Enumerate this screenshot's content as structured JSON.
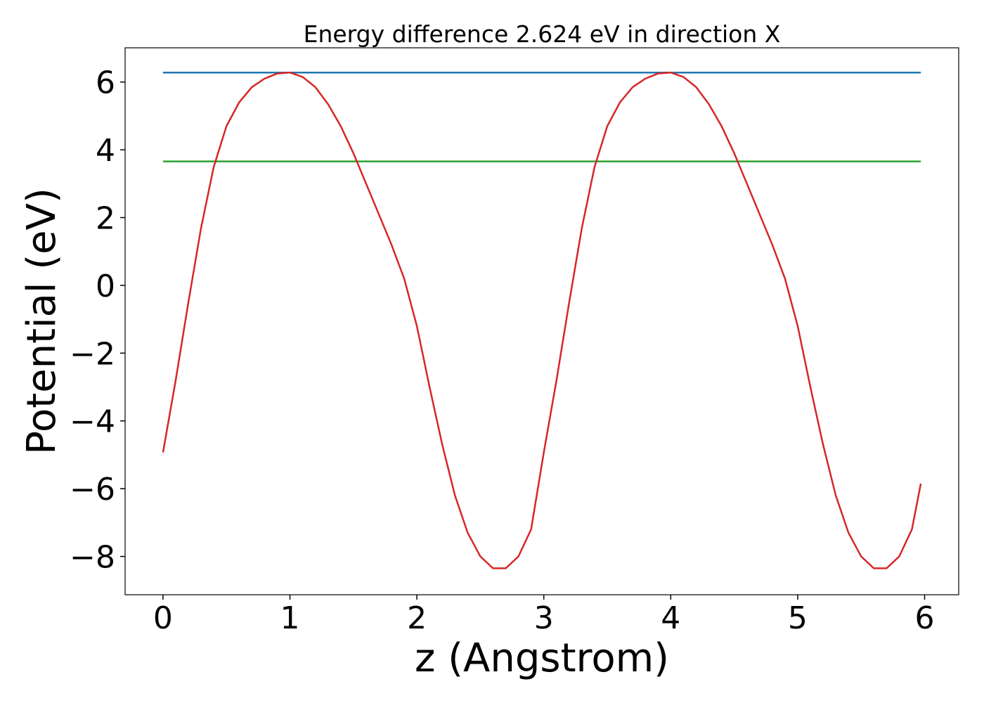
{
  "chart_data": {
    "type": "line",
    "title": "Energy difference 2.624 eV in direction X",
    "x_label": "z (Angstrom)",
    "y_label": "Potential (eV)",
    "xlim": [
      -0.2985,
      6.2685
    ],
    "ylim": [
      -9.13,
      7.01
    ],
    "xticks": [
      0,
      1,
      2,
      3,
      4,
      5,
      6
    ],
    "yticks": [
      {
        "value": -8,
        "label": "−8"
      },
      {
        "value": -6,
        "label": "−6"
      },
      {
        "value": -4,
        "label": "−4"
      },
      {
        "value": -2,
        "label": "−2"
      },
      0,
      2,
      4,
      6
    ],
    "grid": false,
    "series": [
      {
        "color": "#1f77b4",
        "x": [
          0,
          5.97
        ],
        "values": [
          6.28,
          6.28
        ]
      },
      {
        "color": "#2ca02c",
        "x": [
          0,
          5.97
        ],
        "values": [
          3.656,
          3.656
        ]
      },
      {
        "color": "#d62728",
        "x": [
          0,
          0.1,
          0.2,
          0.3,
          0.4,
          0.5,
          0.6,
          0.7,
          0.8,
          0.9,
          1.0,
          1.1,
          1.2,
          1.3,
          1.4,
          1.5,
          1.6,
          1.7,
          1.8,
          1.9,
          2.0,
          2.1,
          2.2,
          2.3,
          2.4,
          2.5,
          2.6,
          2.7,
          2.8,
          2.9,
          3.0,
          3.1,
          3.2,
          3.3,
          3.4,
          3.5,
          3.6,
          3.7,
          3.8,
          3.9,
          4.0,
          4.1,
          4.2,
          4.3,
          4.4,
          4.5,
          4.6,
          4.7,
          4.8,
          4.9,
          5.0,
          5.1,
          5.2,
          5.3,
          5.4,
          5.5,
          5.6,
          5.7,
          5.8,
          5.9,
          5.97
        ],
        "values": [
          -4.93,
          -2.8,
          -0.5,
          1.7,
          3.5,
          4.7,
          5.4,
          5.85,
          6.1,
          6.25,
          6.28,
          6.15,
          5.85,
          5.35,
          4.7,
          3.9,
          3.0,
          2.1,
          1.2,
          0.2,
          -1.2,
          -3.0,
          -4.7,
          -6.2,
          -7.3,
          -8.0,
          -8.35,
          -8.35,
          -8.0,
          -7.2,
          -4.93,
          -2.8,
          -0.5,
          1.7,
          3.5,
          4.7,
          5.4,
          5.85,
          6.1,
          6.25,
          6.28,
          6.15,
          5.85,
          5.35,
          4.7,
          3.9,
          3.0,
          2.1,
          1.2,
          0.2,
          -1.2,
          -3.0,
          -4.7,
          -6.2,
          -7.3,
          -8.0,
          -8.35,
          -8.35,
          -8.0,
          -7.2,
          -5.85
        ]
      }
    ]
  }
}
